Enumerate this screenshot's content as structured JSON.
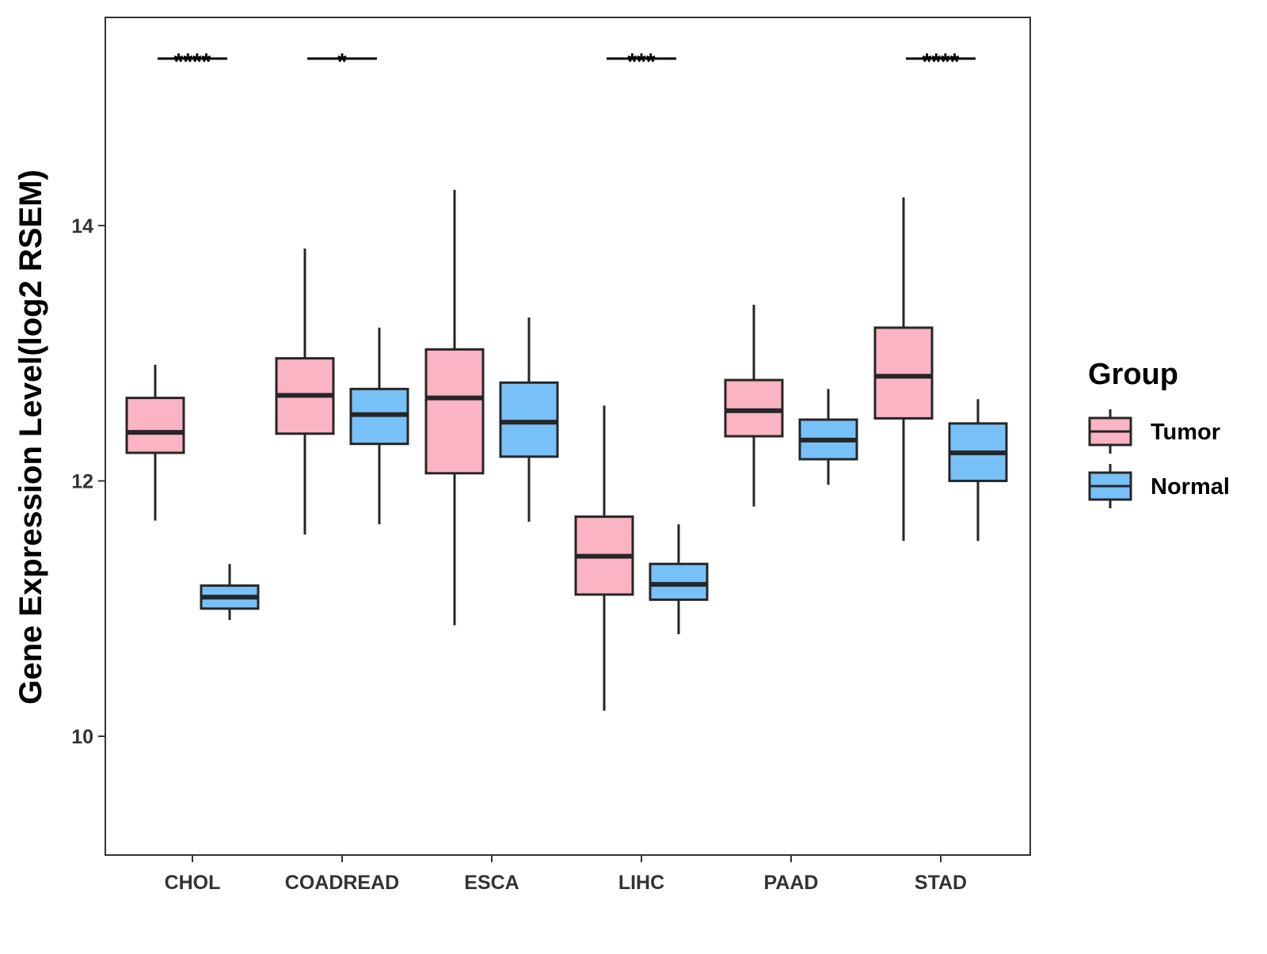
{
  "chart_data": {
    "type": "boxplot",
    "title": "",
    "xlabel": "",
    "ylabel": "Gene Expression Level(log2 RSEM)",
    "ylim": [
      9.07,
      15.63
    ],
    "yticks": [
      10,
      12,
      14
    ],
    "ytick_labels": [
      "10",
      "12",
      "14"
    ],
    "categories": [
      "CHOL",
      "COADREAD",
      "ESCA",
      "LIHC",
      "PAAD",
      "STAD"
    ],
    "legend": {
      "title": "Group",
      "position": "right",
      "entries": [
        "Tumor",
        "Normal"
      ]
    },
    "colors": {
      "Tumor": "#fbb4c4",
      "Normal": "#78c1f8",
      "outline": "#262626"
    },
    "series": [
      {
        "name": "Tumor",
        "boxes": [
          {
            "category": "CHOL",
            "whisker_low": 11.69,
            "q1": 12.22,
            "median": 12.38,
            "q3": 12.65,
            "whisker_high": 12.91
          },
          {
            "category": "COADREAD",
            "whisker_low": 11.58,
            "q1": 12.37,
            "median": 12.67,
            "q3": 12.96,
            "whisker_high": 13.82
          },
          {
            "category": "ESCA",
            "whisker_low": 10.87,
            "q1": 12.06,
            "median": 12.65,
            "q3": 13.03,
            "whisker_high": 14.28
          },
          {
            "category": "LIHC",
            "whisker_low": 10.2,
            "q1": 11.11,
            "median": 11.41,
            "q3": 11.72,
            "whisker_high": 12.59
          },
          {
            "category": "PAAD",
            "whisker_low": 11.8,
            "q1": 12.35,
            "median": 12.55,
            "q3": 12.79,
            "whisker_high": 13.38
          },
          {
            "category": "STAD",
            "whisker_low": 11.53,
            "q1": 12.49,
            "median": 12.82,
            "q3": 13.2,
            "whisker_high": 14.22
          }
        ]
      },
      {
        "name": "Normal",
        "boxes": [
          {
            "category": "CHOL",
            "whisker_low": 10.91,
            "q1": 11.0,
            "median": 11.09,
            "q3": 11.18,
            "whisker_high": 11.35
          },
          {
            "category": "COADREAD",
            "whisker_low": 11.66,
            "q1": 12.29,
            "median": 12.52,
            "q3": 12.72,
            "whisker_high": 13.2
          },
          {
            "category": "ESCA",
            "whisker_low": 11.68,
            "q1": 12.19,
            "median": 12.46,
            "q3": 12.77,
            "whisker_high": 13.28
          },
          {
            "category": "LIHC",
            "whisker_low": 10.8,
            "q1": 11.07,
            "median": 11.19,
            "q3": 11.35,
            "whisker_high": 11.66
          },
          {
            "category": "PAAD",
            "whisker_low": 11.97,
            "q1": 12.17,
            "median": 12.32,
            "q3": 12.48,
            "whisker_high": 12.72
          },
          {
            "category": "STAD",
            "whisker_low": 11.53,
            "q1": 12.0,
            "median": 12.22,
            "q3": 12.45,
            "whisker_high": 12.64
          }
        ]
      }
    ],
    "annotations": [
      {
        "category": "CHOL",
        "label": "****"
      },
      {
        "category": "COADREAD",
        "label": "*"
      },
      {
        "category": "LIHC",
        "label": "***"
      },
      {
        "category": "STAD",
        "label": "****"
      }
    ]
  }
}
